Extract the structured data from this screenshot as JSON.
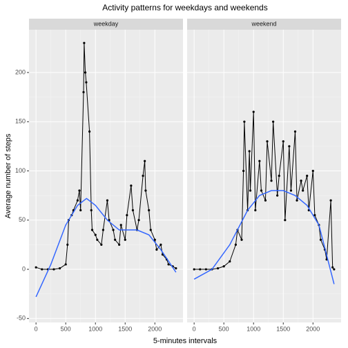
{
  "chart_data": {
    "type": "line",
    "title": "Activity patterns for weekdays and weekends",
    "xlabel": "5-minutes intervals",
    "ylabel": "Average number of steps",
    "xlim": [
      -118,
      2473
    ],
    "ylim": [
      -54,
      243.5
    ],
    "xticks": [
      0,
      500,
      1000,
      1500,
      2000
    ],
    "yticks": [
      -50,
      0,
      50,
      100,
      150,
      200
    ],
    "grid": true,
    "point_color": "#000000",
    "smooth_color": "#3366ff",
    "panels": [
      {
        "strip": "weekday",
        "x": [
          0,
          100,
          200,
          300,
          400,
          500,
          530,
          550,
          600,
          630,
          700,
          730,
          750,
          800,
          810,
          830,
          845,
          900,
          930,
          945,
          1000,
          1030,
          1100,
          1130,
          1200,
          1230,
          1300,
          1330,
          1400,
          1430,
          1500,
          1530,
          1600,
          1630,
          1700,
          1730,
          1800,
          1830,
          1845,
          1900,
          1930,
          2000,
          2030,
          2100,
          2130,
          2200,
          2230,
          2300,
          2355
        ],
        "values": [
          2,
          0,
          0,
          0,
          1,
          5,
          25,
          50,
          55,
          60,
          70,
          80,
          60,
          180,
          230,
          200,
          190,
          140,
          60,
          40,
          35,
          30,
          25,
          40,
          70,
          50,
          40,
          30,
          25,
          45,
          30,
          55,
          85,
          60,
          40,
          50,
          95,
          110,
          80,
          60,
          40,
          30,
          20,
          25,
          15,
          10,
          5,
          3,
          1
        ],
        "smooth_x": [
          0,
          250,
          500,
          700,
          850,
          1000,
          1200,
          1400,
          1700,
          1900,
          2100,
          2355
        ],
        "smooth": [
          -28,
          5,
          45,
          65,
          72,
          65,
          50,
          40,
          40,
          35,
          20,
          -3
        ]
      },
      {
        "strip": "weekend",
        "x": [
          0,
          100,
          200,
          300,
          400,
          500,
          600,
          700,
          730,
          800,
          830,
          845,
          900,
          930,
          945,
          1000,
          1030,
          1100,
          1130,
          1200,
          1230,
          1300,
          1330,
          1400,
          1430,
          1500,
          1530,
          1600,
          1630,
          1700,
          1730,
          1800,
          1830,
          1900,
          1930,
          2000,
          2030,
          2100,
          2130,
          2200,
          2230,
          2300,
          2330,
          2355
        ],
        "values": [
          0,
          0,
          0,
          0,
          1,
          3,
          8,
          25,
          40,
          30,
          100,
          150,
          60,
          120,
          80,
          160,
          60,
          110,
          80,
          70,
          130,
          90,
          150,
          75,
          95,
          130,
          50,
          125,
          80,
          140,
          70,
          90,
          80,
          95,
          60,
          100,
          55,
          45,
          30,
          20,
          10,
          70,
          2,
          0
        ],
        "smooth_x": [
          0,
          300,
          600,
          900,
          1100,
          1300,
          1500,
          1700,
          1900,
          2100,
          2355
        ],
        "smooth": [
          -10,
          0,
          25,
          60,
          75,
          80,
          80,
          75,
          65,
          45,
          -15
        ]
      }
    ]
  }
}
